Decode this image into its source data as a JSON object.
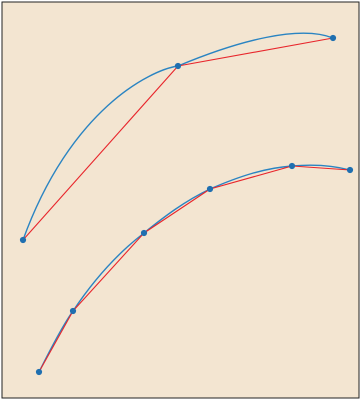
{
  "diagram": {
    "background_color": "#f3e5d1",
    "frame_color": "#222222",
    "curve_color": "#2a84c2",
    "chord_color": "#e8252b",
    "point_color": "#1f6fb0",
    "upper_curve": {
      "point_count": 3,
      "chord_segments": 2
    },
    "lower_curve": {
      "point_count": 6,
      "chord_segments": 5
    }
  }
}
